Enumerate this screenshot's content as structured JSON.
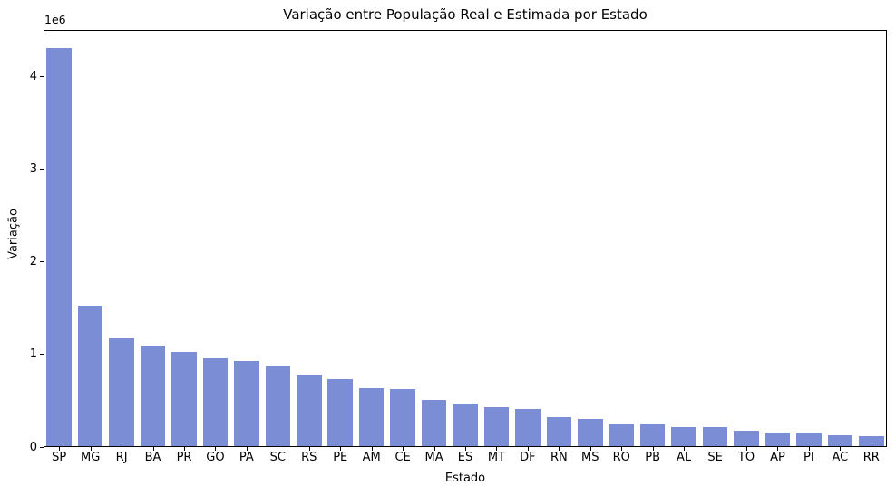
{
  "chart_data": {
    "type": "bar",
    "title": "Variação entre População Real e Estimada por Estado",
    "xlabel": "Estado",
    "ylabel": "Variação",
    "offset_text": "1e6",
    "bar_color": "#7b8ed5",
    "background_color": "#ffffff",
    "grid": false,
    "legend_position": "none",
    "categories": [
      "SP",
      "MG",
      "RJ",
      "BA",
      "PR",
      "GO",
      "PA",
      "SC",
      "RS",
      "PE",
      "AM",
      "CE",
      "MA",
      "ES",
      "MT",
      "DF",
      "RN",
      "MS",
      "RO",
      "PB",
      "AL",
      "SE",
      "TO",
      "AP",
      "PI",
      "AC",
      "RR"
    ],
    "values": [
      4300000,
      1530000,
      1170000,
      1090000,
      1030000,
      960000,
      930000,
      870000,
      770000,
      730000,
      640000,
      625000,
      505000,
      465000,
      435000,
      410000,
      320000,
      300000,
      245000,
      240000,
      215000,
      212000,
      180000,
      160000,
      155000,
      125000,
      113000
    ],
    "ylim": [
      0,
      4500000
    ],
    "yticks": [
      0,
      1000000,
      2000000,
      3000000,
      4000000
    ],
    "ytick_labels": [
      "0",
      "1",
      "2",
      "3",
      "4"
    ]
  }
}
